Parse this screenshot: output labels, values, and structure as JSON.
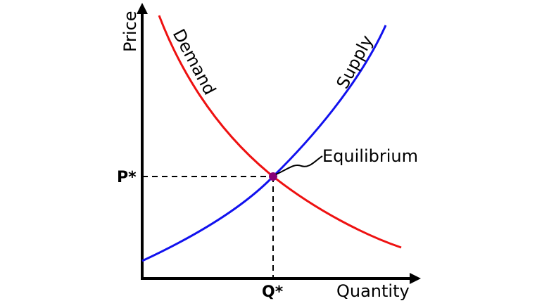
{
  "axes": {
    "y_label": "Price",
    "x_label": "Quantity"
  },
  "curves": {
    "demand": {
      "label": "Demand",
      "color": "#ee1111"
    },
    "supply": {
      "label": "Supply",
      "color": "#1111ee"
    }
  },
  "equilibrium": {
    "label": "Equilibrium",
    "price_label": "P*",
    "quantity_label": "Q*",
    "color": "#880077"
  },
  "line_color": "#000000"
}
